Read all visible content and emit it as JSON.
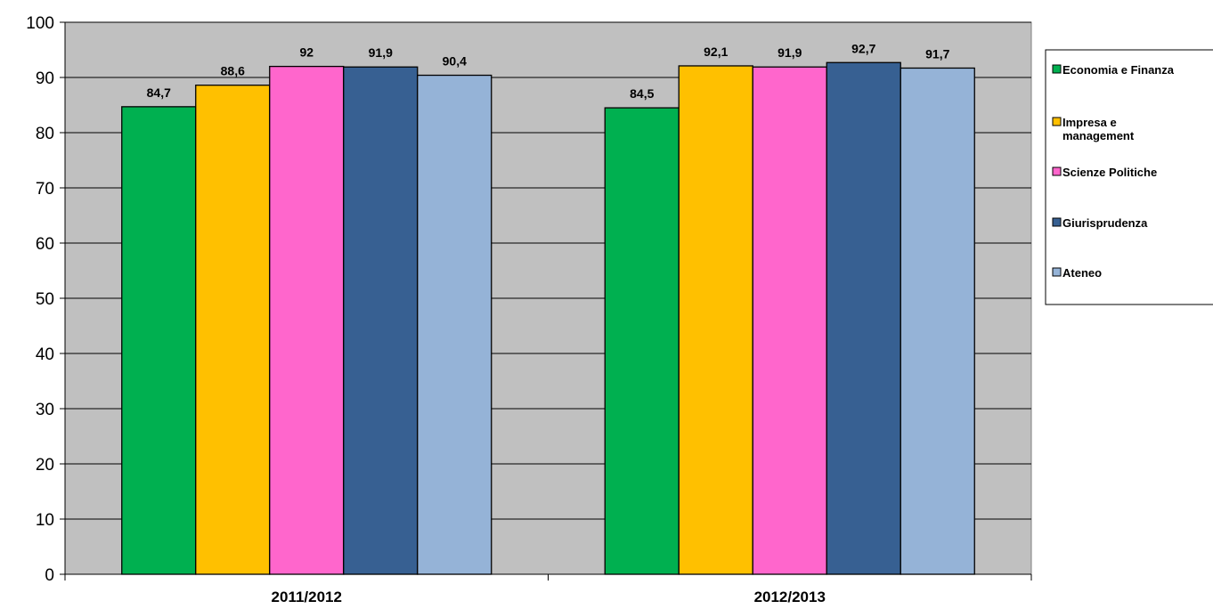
{
  "chart_data": {
    "type": "bar",
    "categories": [
      "2011/2012",
      "2012/2013"
    ],
    "series": [
      {
        "name": "Economia e Finanza",
        "values": [
          84.7,
          84.5
        ],
        "labels": [
          "84,7",
          "84,5"
        ],
        "color": "#00b050"
      },
      {
        "name": "Impresa e management",
        "name_lines": [
          "Impresa e",
          "management"
        ],
        "values": [
          88.6,
          92.1
        ],
        "labels": [
          "88,6",
          "92,1"
        ],
        "color": "#ffc000"
      },
      {
        "name": "Scienze Politiche",
        "values": [
          92,
          91.9
        ],
        "labels": [
          "92",
          "91,9"
        ],
        "color": "#ff66cc"
      },
      {
        "name": "Giurisprudenza",
        "values": [
          91.9,
          92.7
        ],
        "labels": [
          "91,9",
          "92,7"
        ],
        "color": "#376092"
      },
      {
        "name": "Ateneo",
        "values": [
          90.4,
          91.7
        ],
        "labels": [
          "90,4",
          "91,7"
        ],
        "color": "#95b3d7"
      }
    ],
    "ylim": [
      0,
      100
    ],
    "yticks": [
      "0",
      "10",
      "20",
      "30",
      "40",
      "50",
      "60",
      "70",
      "80",
      "90",
      "100"
    ],
    "grid": true,
    "plot_background": "#c0c0c0",
    "legend_position": "right"
  }
}
